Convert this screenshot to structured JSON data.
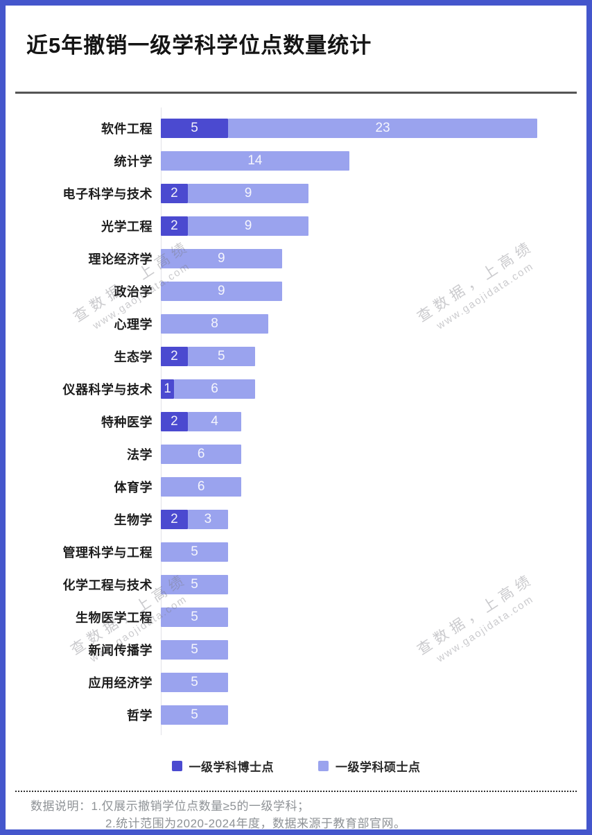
{
  "page": {
    "title": "近5年撤销一级学科学位点数量统计",
    "accent_border_color": "#4456cc"
  },
  "chart_data": {
    "type": "bar",
    "orientation": "horizontal",
    "stacked": true,
    "title": "近5年撤销一级学科学位点数量统计",
    "categories": [
      "软件工程",
      "统计学",
      "电子科学与技术",
      "光学工程",
      "理论经济学",
      "政治学",
      "心理学",
      "生态学",
      "仪器科学与技术",
      "特种医学",
      "法学",
      "体育学",
      "生物学",
      "管理科学与工程",
      "化学工程与技术",
      "生物医学工程",
      "新闻传播学",
      "应用经济学",
      "哲学"
    ],
    "series": [
      {
        "name": "一级学科博士点",
        "color": "#4b4ad0",
        "values": [
          5,
          0,
          2,
          2,
          0,
          0,
          0,
          2,
          1,
          2,
          0,
          0,
          2,
          0,
          0,
          0,
          0,
          0,
          0
        ]
      },
      {
        "name": "一级学科硕士点",
        "color": "#9aa3ee",
        "values": [
          23,
          14,
          9,
          9,
          9,
          9,
          8,
          5,
          6,
          4,
          6,
          6,
          3,
          5,
          5,
          5,
          5,
          5,
          5
        ]
      }
    ],
    "xlim": [
      0,
      28
    ],
    "value_labels": "inside",
    "legend_position": "bottom",
    "grid": false
  },
  "watermark": {
    "line1": "查数据，上高绩",
    "line2": "www.gaojidata.com"
  },
  "notes": {
    "line1": "数据说明：1.仅展示撤销学位点数量≥5的一级学科；",
    "line2": "2.统计范围为2020-2024年度，数据来源于教育部官网。"
  }
}
